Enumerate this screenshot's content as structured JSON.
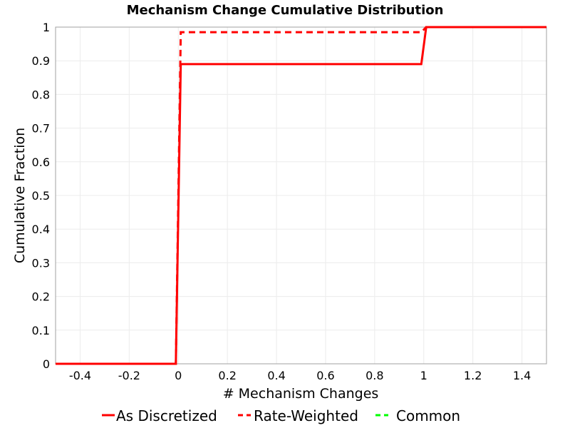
{
  "chart_data": {
    "type": "line",
    "title": "Mechanism Change Cumulative Distribution",
    "xlabel": "# Mechanism Changes",
    "ylabel": "Cumulative Fraction",
    "xlim": [
      -0.5,
      1.5
    ],
    "ylim": [
      0,
      1
    ],
    "xticks": [
      -0.4,
      -0.2,
      0,
      0.2,
      0.4,
      0.6,
      0.8,
      1,
      1.2,
      1.4
    ],
    "xtick_labels": [
      "-0.4",
      "-0.2",
      "0",
      "0.2",
      "0.4",
      "0.6",
      "0.8",
      "1",
      "1.2",
      "1.4"
    ],
    "yticks": [
      0,
      0.1,
      0.2,
      0.3,
      0.4,
      0.5,
      0.6,
      0.7,
      0.8,
      0.9,
      1
    ],
    "ytick_labels": [
      "0",
      "0.1",
      "0.2",
      "0.3",
      "0.4",
      "0.5",
      "0.6",
      "0.7",
      "0.8",
      "0.9",
      "1"
    ],
    "grid": true,
    "legend_position": "bottom",
    "series": [
      {
        "name": "As Discretized",
        "color": "#ff0000",
        "dash": "solid",
        "x": [
          -0.5,
          -0.01,
          0.01,
          0.99,
          1.01,
          1.5
        ],
        "y": [
          0,
          0,
          0.89,
          0.89,
          1,
          1
        ]
      },
      {
        "name": "Rate-Weighted",
        "color": "#ff0000",
        "dash": "dashed",
        "x": [
          -0.5,
          -0.01,
          0.01,
          0.99,
          1.01,
          1.5
        ],
        "y": [
          0,
          0,
          0.985,
          0.985,
          1,
          1
        ]
      },
      {
        "name": "Common",
        "color": "#00ff00",
        "dash": "dashed",
        "x": [],
        "y": []
      }
    ]
  }
}
